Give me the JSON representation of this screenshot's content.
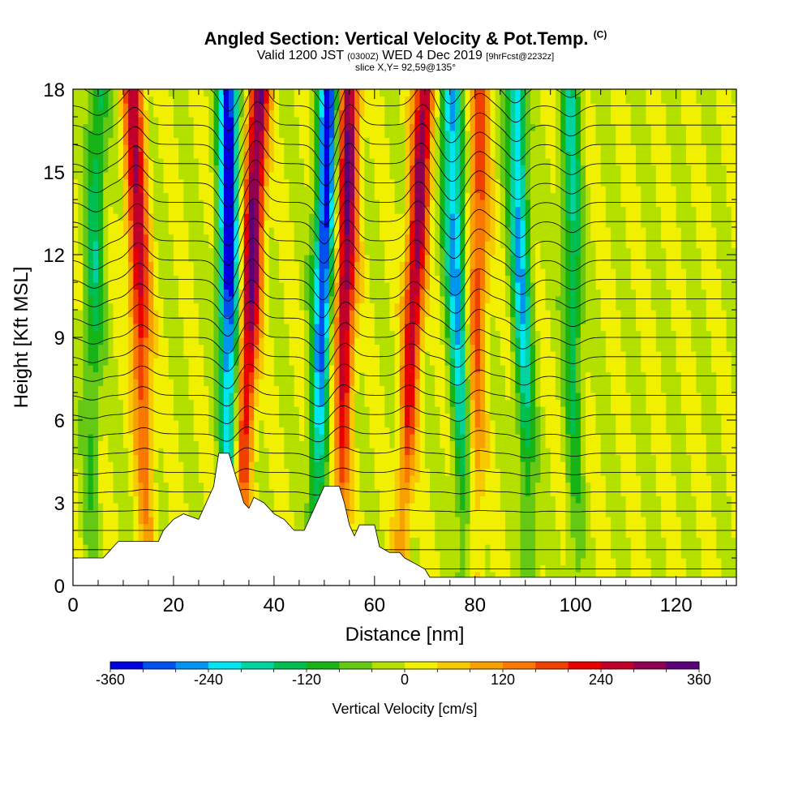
{
  "header": {
    "title": "Angled Section: Vertical Velocity & Pot.Temp.",
    "title_units": "(C)",
    "valid_prefix": "Valid 1200 JST",
    "valid_utc": "(0300Z)",
    "valid_date": "WED 4 Dec 2019",
    "forecast": "[9hrFcst@2232z]",
    "slice": "slice X,Y= 92,59@135°"
  },
  "chart_data": {
    "type": "heatmap",
    "xlabel": "Distance [nm]",
    "ylabel": "Height [Kft MSL]",
    "xlim": [
      0,
      132
    ],
    "ylim": [
      0,
      18
    ],
    "x_ticks": [
      0,
      20,
      40,
      60,
      80,
      100,
      120
    ],
    "y_ticks": [
      0,
      3,
      6,
      9,
      12,
      15,
      18
    ],
    "colorbar": {
      "label": "Vertical Velocity [cm/s]",
      "min": -360,
      "max": 360,
      "step": 40,
      "tick_values": [
        -360,
        -240,
        -120,
        0,
        120,
        240,
        360
      ],
      "colors": [
        "#0000e0",
        "#0050f0",
        "#0096f0",
        "#00e6f0",
        "#00d2a0",
        "#00be50",
        "#16b416",
        "#64c814",
        "#b4e000",
        "#f0f000",
        "#f8c800",
        "#f8a000",
        "#f87800",
        "#f04000",
        "#e80000",
        "#c0002a",
        "#900050",
        "#5a0078"
      ]
    },
    "updrafts": [
      {
        "x0": 15,
        "x1": 12,
        "vmax": 260
      },
      {
        "x0": 33,
        "x1": 37,
        "vmax": 340
      },
      {
        "x0": 53,
        "x1": 55,
        "vmax": 320
      },
      {
        "x0": 65,
        "x1": 70,
        "vmax": 300
      },
      {
        "x0": 80,
        "x1": 81,
        "vmax": 180
      }
    ],
    "downdrafts": [
      {
        "x0": 3,
        "x1": 5,
        "vmax": -140
      },
      {
        "x0": 31,
        "x1": 31,
        "vmax": -360
      },
      {
        "x0": 48,
        "x1": 51,
        "vmax": -340
      },
      {
        "x0": 78,
        "x1": 75,
        "vmax": -260
      },
      {
        "x0": 91,
        "x1": 88,
        "vmax": -240
      },
      {
        "x0": 100,
        "x1": 99,
        "vmax": -160
      }
    ],
    "terrain": [
      {
        "x": 0,
        "h": 1.0
      },
      {
        "x": 6,
        "h": 1.0
      },
      {
        "x": 7,
        "h": 1.2
      },
      {
        "x": 8,
        "h": 1.4
      },
      {
        "x": 9,
        "h": 1.6
      },
      {
        "x": 17,
        "h": 1.6
      },
      {
        "x": 18,
        "h": 2.0
      },
      {
        "x": 20,
        "h": 2.4
      },
      {
        "x": 22,
        "h": 2.6
      },
      {
        "x": 25,
        "h": 2.4
      },
      {
        "x": 26,
        "h": 2.8
      },
      {
        "x": 28,
        "h": 3.6
      },
      {
        "x": 29,
        "h": 4.8
      },
      {
        "x": 31,
        "h": 4.8
      },
      {
        "x": 32,
        "h": 4.2
      },
      {
        "x": 33,
        "h": 3.6
      },
      {
        "x": 34,
        "h": 3.0
      },
      {
        "x": 35,
        "h": 2.8
      },
      {
        "x": 36,
        "h": 3.2
      },
      {
        "x": 38,
        "h": 3.0
      },
      {
        "x": 40,
        "h": 2.6
      },
      {
        "x": 42,
        "h": 2.4
      },
      {
        "x": 44,
        "h": 2.0
      },
      {
        "x": 46,
        "h": 2.0
      },
      {
        "x": 48,
        "h": 2.8
      },
      {
        "x": 50,
        "h": 3.6
      },
      {
        "x": 53,
        "h": 3.6
      },
      {
        "x": 54,
        "h": 3.0
      },
      {
        "x": 55,
        "h": 2.2
      },
      {
        "x": 56,
        "h": 1.8
      },
      {
        "x": 57,
        "h": 2.2
      },
      {
        "x": 60,
        "h": 2.2
      },
      {
        "x": 61,
        "h": 1.4
      },
      {
        "x": 63,
        "h": 1.2
      },
      {
        "x": 65,
        "h": 1.2
      },
      {
        "x": 66,
        "h": 1.0
      },
      {
        "x": 68,
        "h": 0.8
      },
      {
        "x": 70,
        "h": 0.6
      },
      {
        "x": 71,
        "h": 0.3
      },
      {
        "x": 132,
        "h": 0.3
      }
    ]
  }
}
